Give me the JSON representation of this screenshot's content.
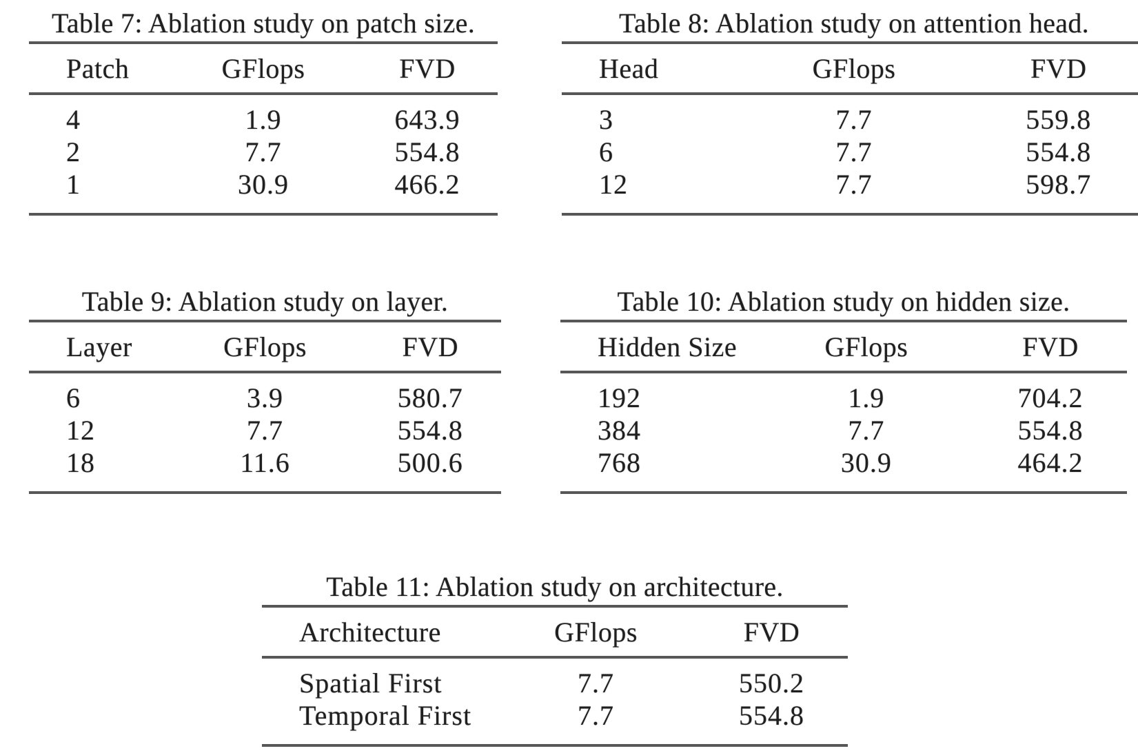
{
  "theme": {
    "text_color": "#1f1f1f",
    "rule_color": "#575757",
    "page_bg": "#ffffff"
  },
  "tables": [
    {
      "caption": "Table 7: Ablation study on patch size.",
      "headers": [
        "Patch",
        "GFlops",
        "FVD"
      ],
      "rows": [
        [
          "4",
          "1.9",
          "643.9"
        ],
        [
          "2",
          "7.7",
          "554.8"
        ],
        [
          "1",
          "30.9",
          "466.2"
        ]
      ]
    },
    {
      "caption": "Table 8: Ablation study on attention head.",
      "headers": [
        "Head",
        "GFlops",
        "FVD"
      ],
      "rows": [
        [
          "3",
          "7.7",
          "559.8"
        ],
        [
          "6",
          "7.7",
          "554.8"
        ],
        [
          "12",
          "7.7",
          "598.7"
        ]
      ]
    },
    {
      "caption": "Table 9: Ablation study on layer.",
      "headers": [
        "Layer",
        "GFlops",
        "FVD"
      ],
      "rows": [
        [
          "6",
          "3.9",
          "580.7"
        ],
        [
          "12",
          "7.7",
          "554.8"
        ],
        [
          "18",
          "11.6",
          "500.6"
        ]
      ]
    },
    {
      "caption": "Table 10: Ablation study on hidden size.",
      "headers": [
        "Hidden Size",
        "GFlops",
        "FVD"
      ],
      "rows": [
        [
          "192",
          "1.9",
          "704.2"
        ],
        [
          "384",
          "7.7",
          "554.8"
        ],
        [
          "768",
          "30.9",
          "464.2"
        ]
      ]
    },
    {
      "caption": "Table 11: Ablation study on architecture.",
      "headers": [
        "Architecture",
        "GFlops",
        "FVD"
      ],
      "rows": [
        [
          "Spatial First",
          "7.7",
          "550.2"
        ],
        [
          "Temporal First",
          "7.7",
          "554.8"
        ]
      ]
    }
  ]
}
